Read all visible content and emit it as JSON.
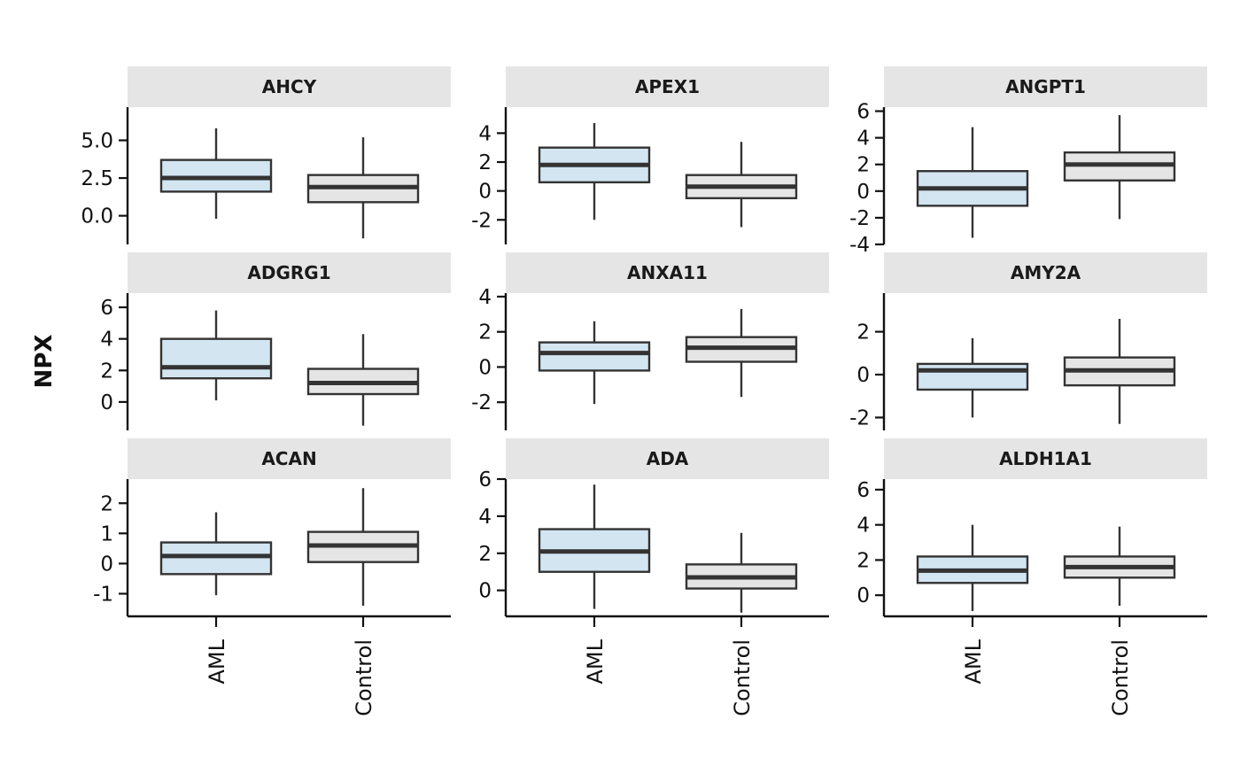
{
  "y_axis_title": "NPX",
  "colors": {
    "AML": "#d3e5f1",
    "Control": "#e5e5e5",
    "strip": "#e5e5e5",
    "line": "#333333"
  },
  "chart_data": {
    "type": "boxplot",
    "ylabel": "NPX",
    "groups": [
      "AML",
      "Control"
    ],
    "panels": [
      {
        "title": "AHCY",
        "ylim": [
          -1.9,
          7.2
        ],
        "ticks": [
          0.0,
          2.5,
          5.0
        ],
        "tick_labels": [
          "0.0",
          "2.5",
          "5.0"
        ],
        "boxes": [
          {
            "group": "AML",
            "min": -0.2,
            "q1": 1.6,
            "median": 2.5,
            "q3": 3.7,
            "max": 5.8
          },
          {
            "group": "Control",
            "min": -1.5,
            "q1": 0.9,
            "median": 1.9,
            "q3": 2.7,
            "max": 5.2
          }
        ]
      },
      {
        "title": "APEX1",
        "ylim": [
          -3.7,
          5.8
        ],
        "ticks": [
          -2,
          0,
          2,
          4
        ],
        "tick_labels": [
          "-2",
          "0",
          "2",
          "4"
        ],
        "boxes": [
          {
            "group": "AML",
            "min": -2.0,
            "q1": 0.6,
            "median": 1.8,
            "q3": 3.0,
            "max": 4.7
          },
          {
            "group": "Control",
            "min": -2.5,
            "q1": -0.5,
            "median": 0.3,
            "q3": 1.1,
            "max": 3.4
          }
        ]
      },
      {
        "title": "ANGPT1",
        "ylim": [
          -4,
          6.3
        ],
        "ticks": [
          -4,
          -2,
          0,
          2,
          4,
          6
        ],
        "tick_labels": [
          "-4",
          "-2",
          "0",
          "2",
          "4",
          "6"
        ],
        "boxes": [
          {
            "group": "AML",
            "min": -3.5,
            "q1": -1.1,
            "median": 0.2,
            "q3": 1.5,
            "max": 4.8
          },
          {
            "group": "Control",
            "min": -2.1,
            "q1": 0.8,
            "median": 2.0,
            "q3": 2.9,
            "max": 5.7
          }
        ]
      },
      {
        "title": "ADGRG1",
        "ylim": [
          -1.8,
          6.9
        ],
        "ticks": [
          0,
          2,
          4,
          6
        ],
        "tick_labels": [
          "0",
          "2",
          "4",
          "6"
        ],
        "boxes": [
          {
            "group": "AML",
            "min": 0.1,
            "q1": 1.5,
            "median": 2.2,
            "q3": 4.0,
            "max": 5.8
          },
          {
            "group": "Control",
            "min": -1.5,
            "q1": 0.5,
            "median": 1.2,
            "q3": 2.1,
            "max": 4.3
          }
        ]
      },
      {
        "title": "ANXA11",
        "ylim": [
          -3.6,
          4.2
        ],
        "ticks": [
          -2,
          0,
          2,
          4
        ],
        "tick_labels": [
          "-2",
          "0",
          "2",
          "4"
        ],
        "boxes": [
          {
            "group": "AML",
            "min": -2.1,
            "q1": -0.2,
            "median": 0.8,
            "q3": 1.4,
            "max": 2.6
          },
          {
            "group": "Control",
            "min": -1.7,
            "q1": 0.3,
            "median": 1.1,
            "q3": 1.7,
            "max": 3.3
          }
        ]
      },
      {
        "title": "AMY2A",
        "ylim": [
          -2.6,
          3.8
        ],
        "ticks": [
          -2,
          0,
          2
        ],
        "tick_labels": [
          "-2",
          "0",
          "2"
        ],
        "boxes": [
          {
            "group": "AML",
            "min": -2.0,
            "q1": -0.7,
            "median": 0.2,
            "q3": 0.5,
            "max": 1.7
          },
          {
            "group": "Control",
            "min": -2.3,
            "q1": -0.5,
            "median": 0.2,
            "q3": 0.8,
            "max": 2.6
          }
        ]
      },
      {
        "title": "ACAN",
        "ylim": [
          -1.75,
          2.8
        ],
        "ticks": [
          -1,
          0,
          1,
          2
        ],
        "tick_labels": [
          "-1",
          "0",
          "1",
          "2"
        ],
        "boxes": [
          {
            "group": "AML",
            "min": -1.05,
            "q1": -0.35,
            "median": 0.25,
            "q3": 0.7,
            "max": 1.7
          },
          {
            "group": "Control",
            "min": -1.4,
            "q1": 0.05,
            "median": 0.6,
            "q3": 1.05,
            "max": 2.5
          }
        ]
      },
      {
        "title": "ADA",
        "ylim": [
          -1.4,
          6.0
        ],
        "ticks": [
          0,
          2,
          4,
          6
        ],
        "tick_labels": [
          "0",
          "2",
          "4",
          "6"
        ],
        "boxes": [
          {
            "group": "AML",
            "min": -1.0,
            "q1": 1.0,
            "median": 2.1,
            "q3": 3.3,
            "max": 5.7
          },
          {
            "group": "Control",
            "min": -1.2,
            "q1": 0.1,
            "median": 0.7,
            "q3": 1.4,
            "max": 3.1
          }
        ]
      },
      {
        "title": "ALDH1A1",
        "ylim": [
          -1.2,
          6.6
        ],
        "ticks": [
          0,
          2,
          4,
          6
        ],
        "tick_labels": [
          "0",
          "2",
          "4",
          "6"
        ],
        "boxes": [
          {
            "group": "AML",
            "min": -0.9,
            "q1": 0.7,
            "median": 1.4,
            "q3": 2.2,
            "max": 4.0
          },
          {
            "group": "Control",
            "min": -0.6,
            "q1": 1.0,
            "median": 1.6,
            "q3": 2.2,
            "max": 3.9
          }
        ]
      }
    ]
  }
}
